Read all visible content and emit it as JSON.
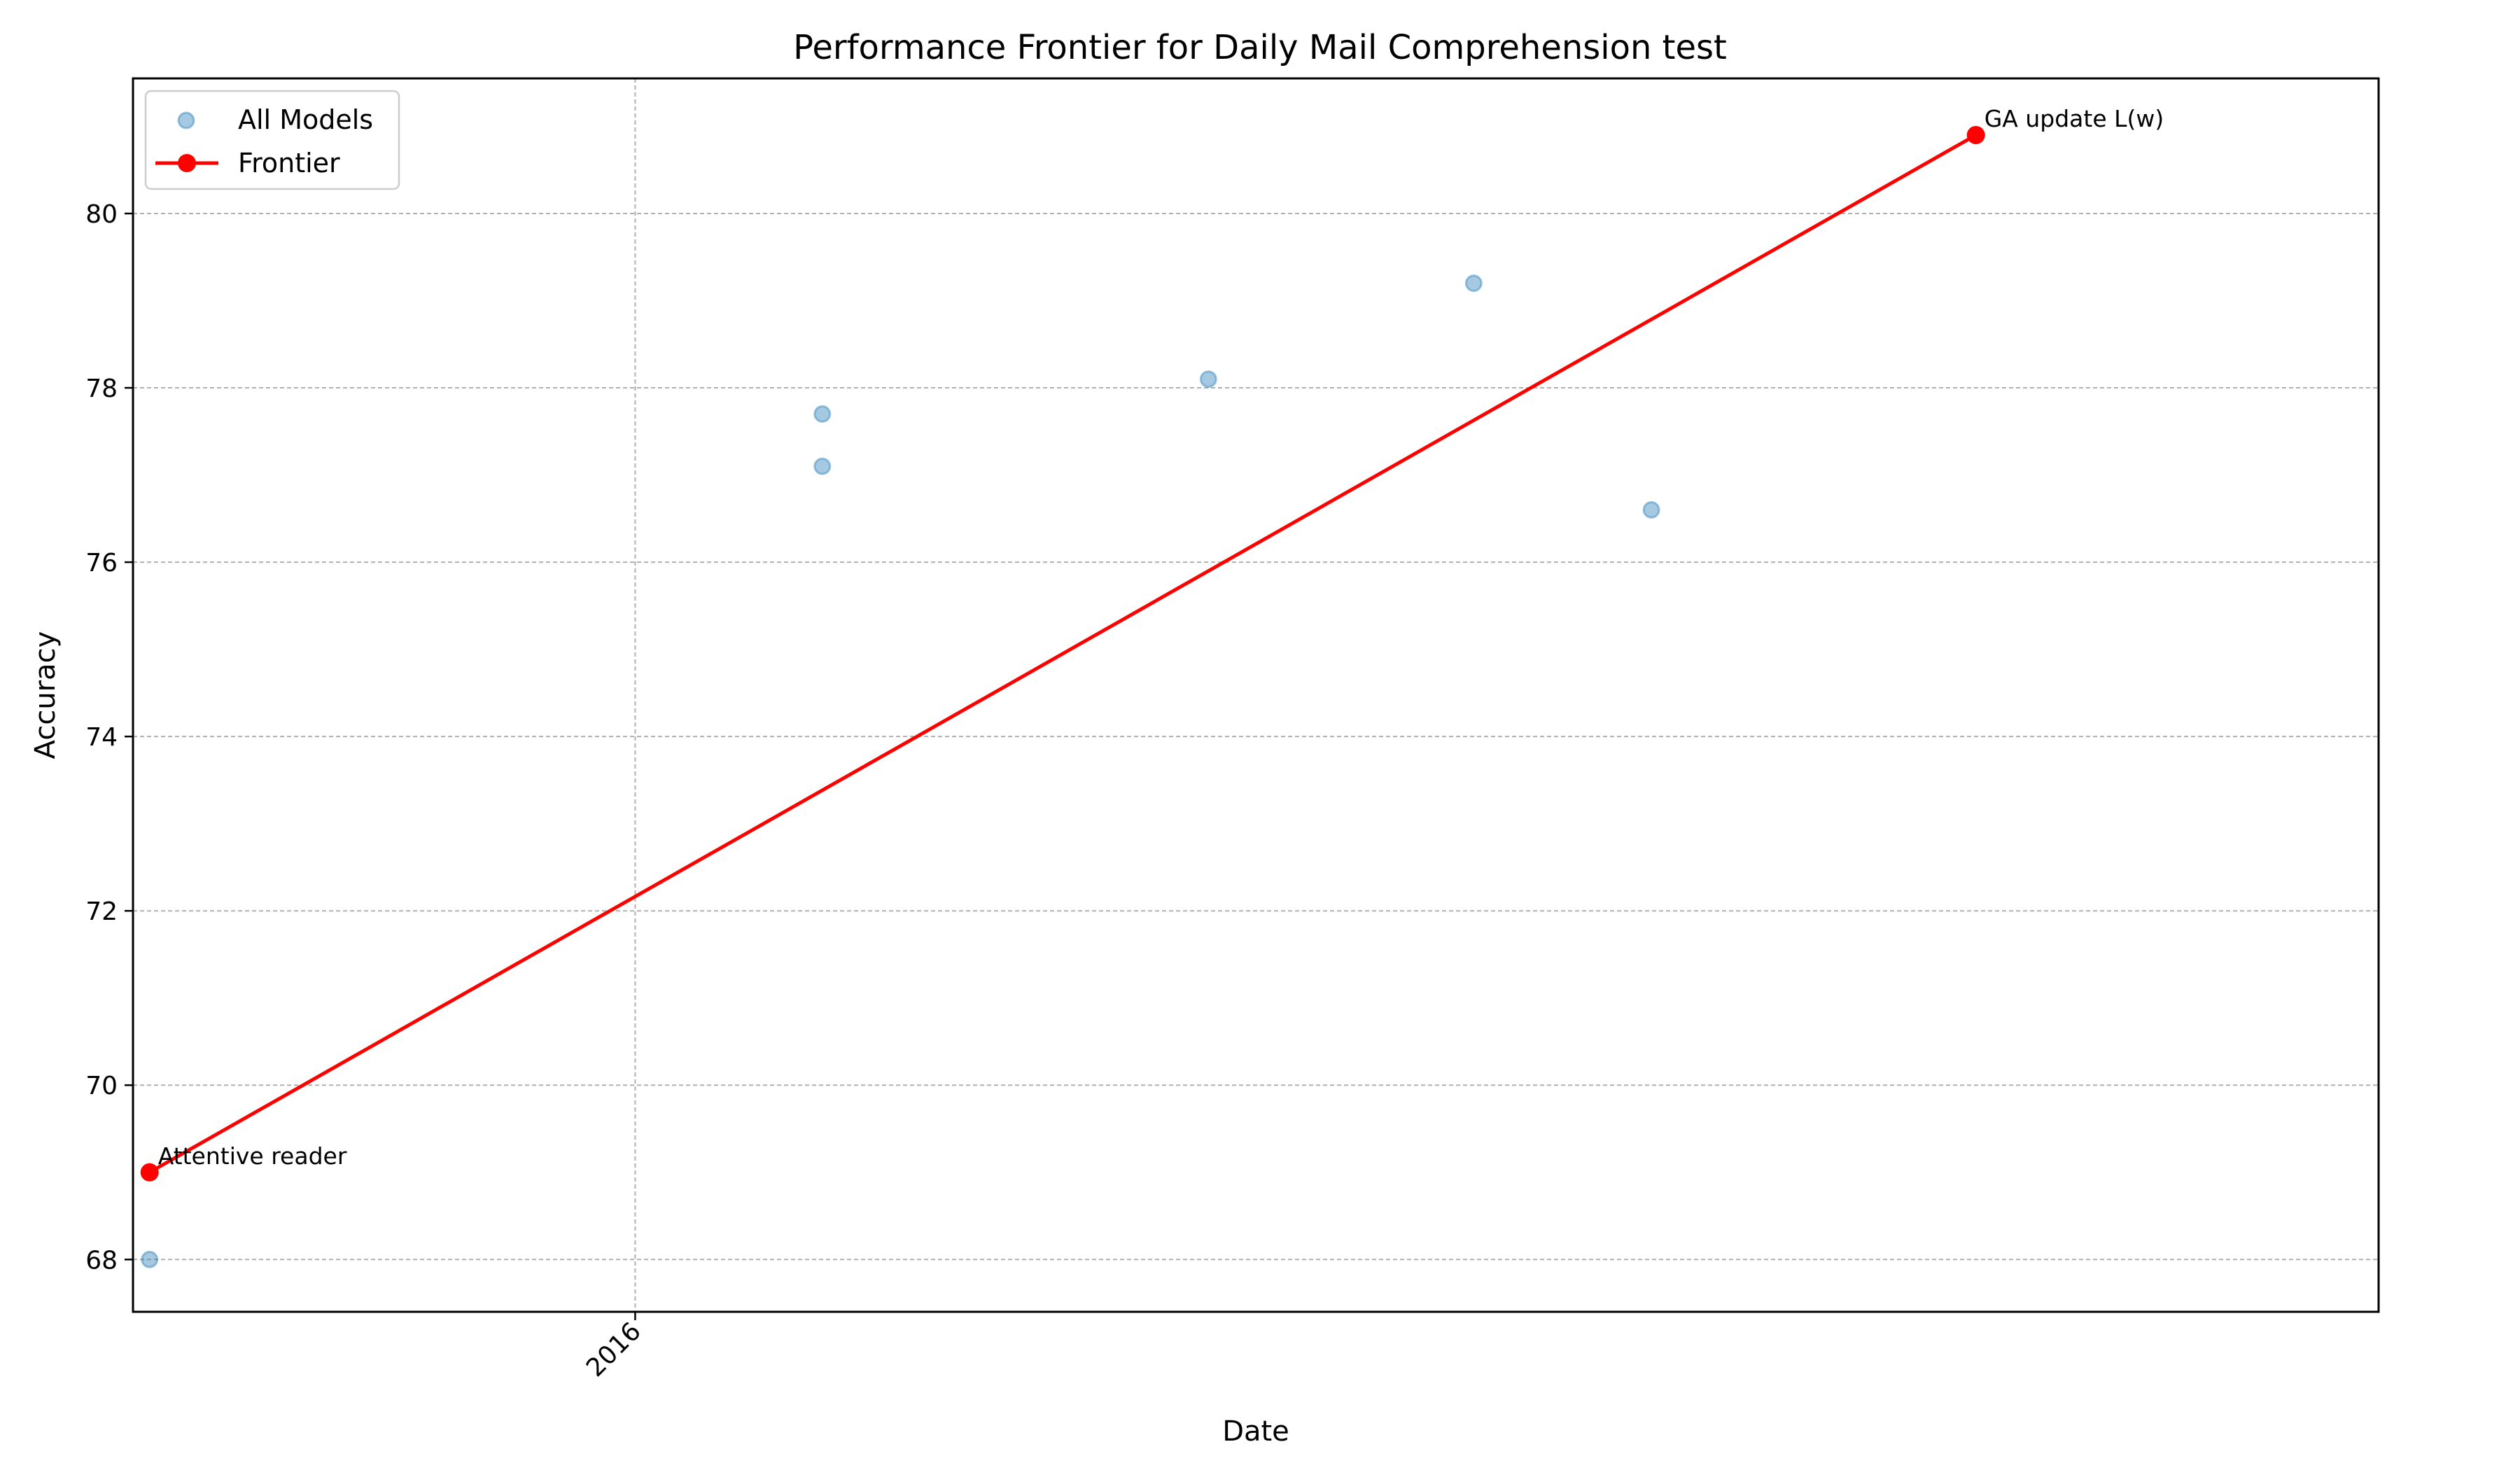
{
  "chart_data": {
    "type": "scatter",
    "title": "Performance Frontier for Daily Mail Comprehension test",
    "xlabel": "Date",
    "ylabel": "Accuracy",
    "x_axis_kind": "date",
    "xlim": [
      "2015-06-03",
      "2018-01-06"
    ],
    "ylim": [
      67.4,
      81.55
    ],
    "x_ticks": [
      {
        "value": "2016-01-01",
        "label": "2016"
      }
    ],
    "y_ticks": [
      68,
      70,
      72,
      74,
      76,
      78,
      80
    ],
    "grid": true,
    "legend": {
      "placement": "top-left",
      "entries": [
        "All Models",
        "Frontier"
      ]
    },
    "series": [
      {
        "name": "All Models",
        "kind": "scatter",
        "color": "#1f77b4",
        "points": [
          {
            "x": "2015-06-10",
            "y": 68.0
          },
          {
            "x": "2015-06-10",
            "y": 69.0
          },
          {
            "x": "2016-03-20",
            "y": 77.7
          },
          {
            "x": "2016-03-20",
            "y": 77.1
          },
          {
            "x": "2016-08-30",
            "y": 78.1
          },
          {
            "x": "2016-12-20",
            "y": 79.2
          },
          {
            "x": "2017-03-05",
            "y": 76.6
          },
          {
            "x": "2017-07-20",
            "y": 80.9
          }
        ]
      },
      {
        "name": "Frontier",
        "kind": "line",
        "color": "#ff0000",
        "points": [
          {
            "x": "2015-06-10",
            "y": 69.0
          },
          {
            "x": "2017-07-20",
            "y": 80.9
          }
        ]
      }
    ],
    "annotations": [
      {
        "text": "Attentive reader",
        "x": "2015-06-10",
        "y": 69.0
      },
      {
        "text": "GA update L(w)",
        "x": "2017-07-20",
        "y": 80.9
      }
    ]
  }
}
